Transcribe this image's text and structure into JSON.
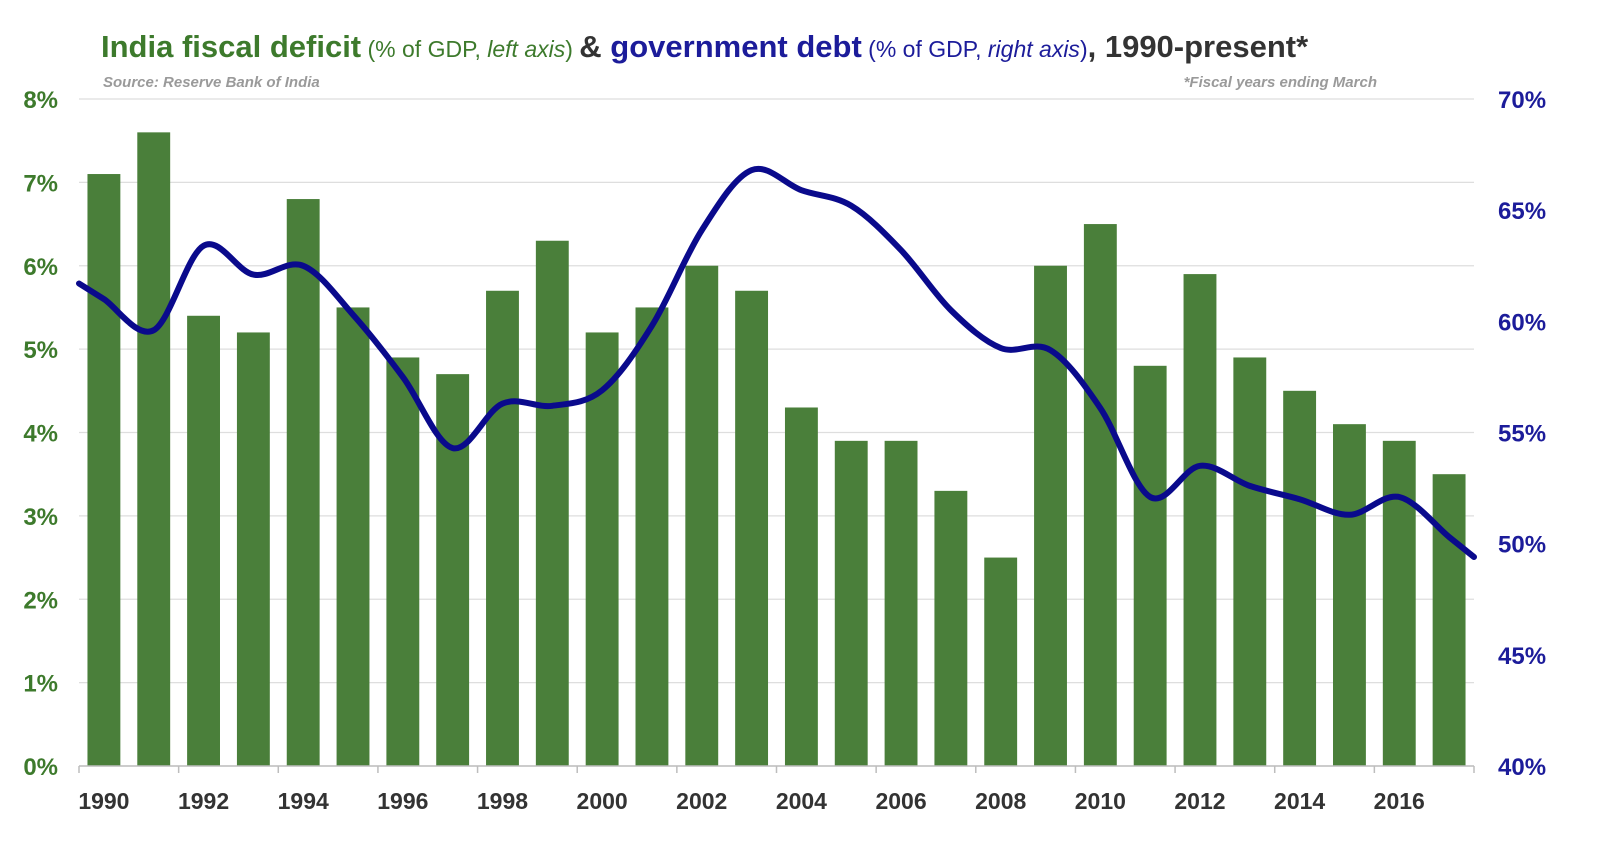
{
  "chart_data": {
    "type": "bar",
    "title": {
      "part1_bold": "India fiscal deficit",
      "part1_note_a": " (% of GDP, ",
      "part1_note_em": "left axis",
      "part1_note_b": ") ",
      "amp": "& ",
      "part2_bold": "government debt",
      "part2_note_a": " (% of GDP, ",
      "part2_note_em": "right axis",
      "part2_note_b": ")",
      "part3": ", 1990-present*"
    },
    "source": "Source: Reserve Bank of India",
    "footnote": "*Fiscal years ending March",
    "x": [
      1990,
      1991,
      1992,
      1993,
      1994,
      1995,
      1996,
      1997,
      1998,
      1999,
      2000,
      2001,
      2002,
      2003,
      2004,
      2005,
      2006,
      2007,
      2008,
      2009,
      2010,
      2011,
      2012,
      2013,
      2014,
      2015,
      2016,
      2017
    ],
    "x_tick_labels": [
      "1990",
      "1992",
      "1994",
      "1996",
      "1998",
      "2000",
      "2002",
      "2004",
      "2006",
      "2008",
      "2010",
      "2012",
      "2014",
      "2016"
    ],
    "series": [
      {
        "axis": "left",
        "type": "bar",
        "values": [
          7.1,
          7.6,
          5.4,
          5.2,
          6.8,
          5.5,
          4.9,
          4.7,
          5.7,
          6.3,
          5.2,
          5.5,
          6.0,
          5.7,
          4.3,
          3.9,
          3.9,
          3.3,
          2.5,
          6.0,
          6.5,
          4.8,
          5.9,
          4.9,
          4.5,
          4.1,
          3.9,
          3.5
        ]
      },
      {
        "axis": "right",
        "type": "line",
        "values": [
          61.0,
          59.6,
          63.4,
          62.1,
          62.5,
          60.3,
          57.5,
          54.3,
          56.3,
          56.2,
          56.9,
          59.8,
          64.1,
          66.8,
          65.9,
          65.2,
          63.2,
          60.5,
          58.8,
          58.7,
          56.1,
          52.1,
          53.5,
          52.6,
          52.0,
          51.3,
          52.1,
          50.3
        ]
      }
    ],
    "y_left": {
      "min": 0,
      "max": 8,
      "ticks": [
        "0%",
        "1%",
        "2%",
        "3%",
        "4%",
        "5%",
        "6%",
        "7%",
        "8%"
      ]
    },
    "y_right": {
      "min": 40,
      "max": 70,
      "ticks": [
        "40%",
        "45%",
        "50%",
        "55%",
        "60%",
        "65%",
        "70%"
      ]
    },
    "grid": true,
    "colors": {
      "bar": "#4a7f3a",
      "line": "#0a0a8c",
      "left_axis": "#3d7a2c",
      "right_axis": "#1c1c9a",
      "grid": "#dedede",
      "title_green": "#3d7a2c",
      "title_blue": "#1c1c9a",
      "title_dark": "#333333"
    }
  }
}
